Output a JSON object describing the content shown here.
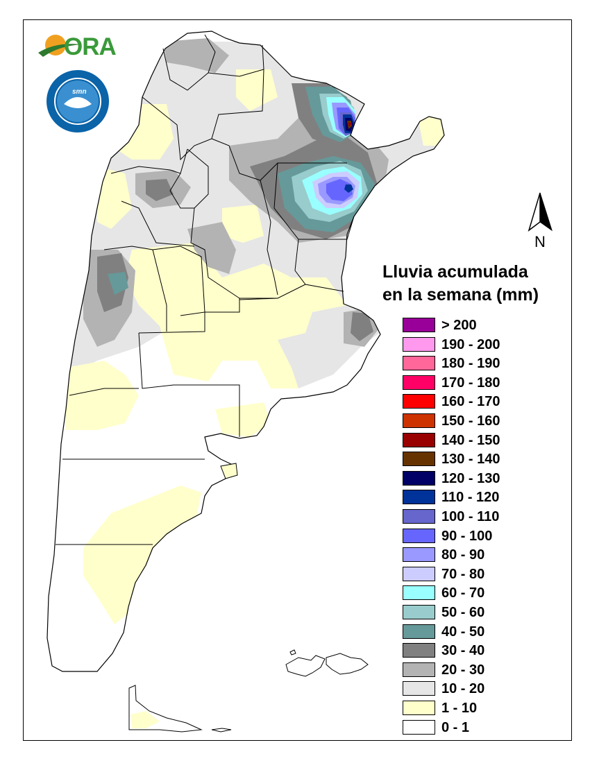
{
  "legend": {
    "title_line1": "Lluvia acumulada",
    "title_line2": "en la semana (mm)",
    "items": [
      {
        "label": "> 200",
        "color": "#990099"
      },
      {
        "label": "190 - 200",
        "color": "#ff99ee"
      },
      {
        "label": "180 - 190",
        "color": "#ff6699"
      },
      {
        "label": "170 - 180",
        "color": "#ff0066"
      },
      {
        "label": "160 - 170",
        "color": "#ff0000"
      },
      {
        "label": "150 - 160",
        "color": "#cc3300"
      },
      {
        "label": "140 - 150",
        "color": "#990000"
      },
      {
        "label": "130 - 140",
        "color": "#663300"
      },
      {
        "label": "120 - 130",
        "color": "#000066"
      },
      {
        "label": "110 - 120",
        "color": "#003399"
      },
      {
        "label": "100 - 110",
        "color": "#6666cc"
      },
      {
        "label": "90 - 100",
        "color": "#6666ff"
      },
      {
        "label": "80 - 90",
        "color": "#9999ff"
      },
      {
        "label": "70 - 80",
        "color": "#ccccff"
      },
      {
        "label": "60 - 70",
        "color": "#99ffff"
      },
      {
        "label": "50 - 60",
        "color": "#99cccc"
      },
      {
        "label": "40 - 50",
        "color": "#669999"
      },
      {
        "label": "30 - 40",
        "color": "#808080"
      },
      {
        "label": "20 - 30",
        "color": "#b3b3b3"
      },
      {
        "label": "10 - 20",
        "color": "#e6e6e6"
      },
      {
        "label": "1 - 10",
        "color": "#ffffcc"
      },
      {
        "label": "0 - 1",
        "color": "#ffffff"
      }
    ]
  },
  "north_arrow": {
    "label": "N"
  },
  "logos": {
    "ora": {
      "text": "ORA",
      "icon": "ora-logo"
    },
    "smn": {
      "text": "smn",
      "icon": "smn-seal"
    }
  }
}
